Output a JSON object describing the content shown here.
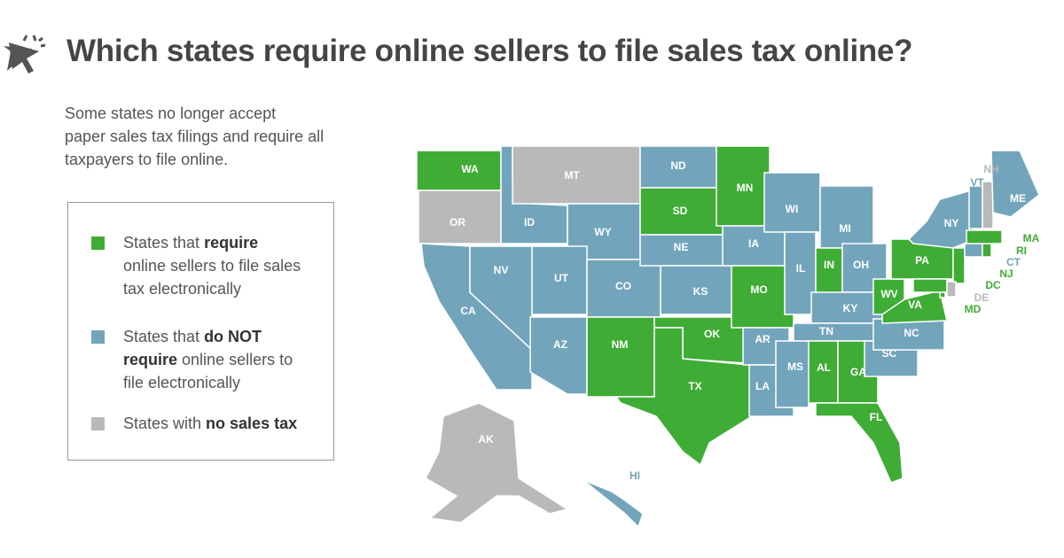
{
  "header": {
    "title": "Which states require online sellers to file sales tax online?"
  },
  "description": {
    "lines": [
      "Some states no longer accept",
      "paper sales tax filings and require all",
      "taxpayers to file online."
    ]
  },
  "legend": {
    "items": [
      {
        "color": "#3fac35",
        "before": "States that ",
        "bold": "require",
        "after": " online sellers to file sales tax electronically"
      },
      {
        "color": "#72a5bb",
        "before": "States that ",
        "bold": "do NOT require",
        "after": " online sellers to file electronically"
      },
      {
        "color": "#b9b9b9",
        "before": "States with ",
        "bold": "no sales tax"
      }
    ]
  },
  "map": {
    "states": [
      {
        "label": "WA",
        "group": 0
      },
      {
        "label": "OR",
        "group": 2
      },
      {
        "label": "CA",
        "group": 1
      },
      {
        "label": "ID",
        "group": 1
      },
      {
        "label": "NV",
        "group": 1
      },
      {
        "label": "MT",
        "group": 2
      },
      {
        "label": "WY",
        "group": 1
      },
      {
        "label": "UT",
        "group": 1
      },
      {
        "label": "CO",
        "group": 1
      },
      {
        "label": "AZ",
        "group": 1
      },
      {
        "label": "NM",
        "group": 0
      },
      {
        "label": "ND",
        "group": 1
      },
      {
        "label": "SD",
        "group": 0
      },
      {
        "label": "NE",
        "group": 1
      },
      {
        "label": "KS",
        "group": 1
      },
      {
        "label": "OK",
        "group": 0
      },
      {
        "label": "TX",
        "group": 0
      },
      {
        "label": "MN",
        "group": 0
      },
      {
        "label": "IA",
        "group": 1
      },
      {
        "label": "MO",
        "group": 0
      },
      {
        "label": "AR",
        "group": 1
      },
      {
        "label": "LA",
        "group": 1
      },
      {
        "label": "WI",
        "group": 1
      },
      {
        "label": "IL",
        "group": 1
      },
      {
        "label": "MI",
        "group": 1
      },
      {
        "label": "IN",
        "group": 0
      },
      {
        "label": "OH",
        "group": 1
      },
      {
        "label": "KY",
        "group": 1
      },
      {
        "label": "TN",
        "group": 1
      },
      {
        "label": "MS",
        "group": 1
      },
      {
        "label": "AL",
        "group": 0
      },
      {
        "label": "GA",
        "group": 0
      },
      {
        "label": "FL",
        "group": 0
      },
      {
        "label": "SC",
        "group": 1
      },
      {
        "label": "NC",
        "group": 1
      },
      {
        "label": "WV",
        "group": 0
      },
      {
        "label": "VA",
        "group": 0
      },
      {
        "label": "PA",
        "group": 0
      },
      {
        "label": "NY",
        "group": 1
      },
      {
        "label": "NJ",
        "group": 0
      },
      {
        "label": "MD",
        "group": 0
      },
      {
        "label": "DE",
        "group": 2
      },
      {
        "label": "DC",
        "group": 0
      },
      {
        "label": "CT",
        "group": 1
      },
      {
        "label": "RI",
        "group": 0
      },
      {
        "label": "MA",
        "group": 0
      },
      {
        "label": "VT",
        "group": 1
      },
      {
        "label": "NH",
        "group": 2
      },
      {
        "label": "ME",
        "group": 1
      },
      {
        "label": "AK",
        "group": 2
      },
      {
        "label": "HI",
        "group": 1
      }
    ]
  }
}
